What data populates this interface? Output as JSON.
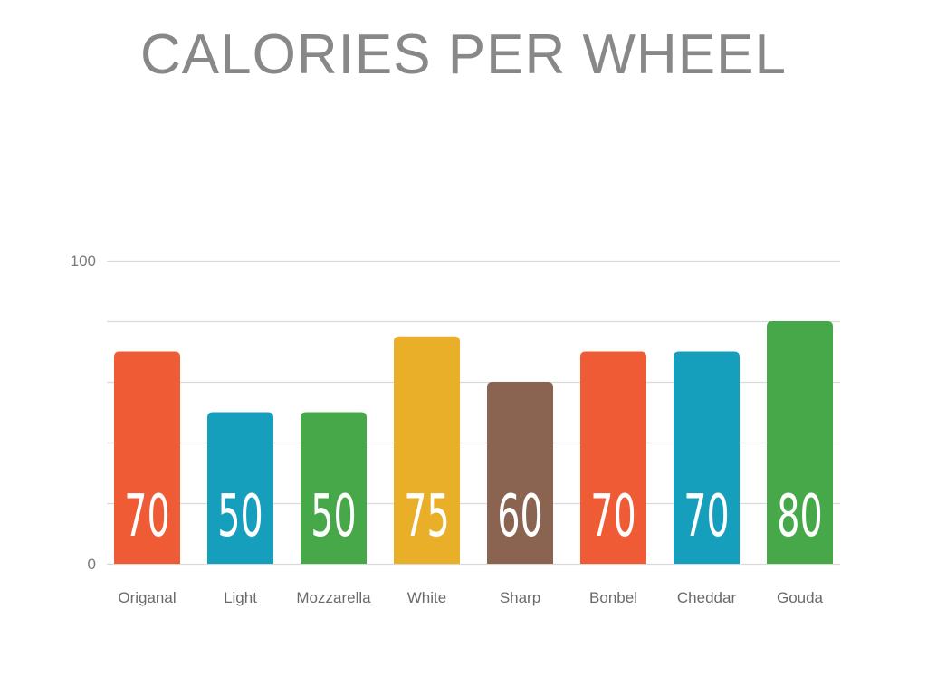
{
  "title": "CALORIES PER WHEEL",
  "chart_data": {
    "type": "bar",
    "title": "CALORIES PER WHEEL",
    "categories": [
      "Origanal",
      "Light",
      "Mozzarella",
      "White",
      "Sharp",
      "Bonbel",
      "Cheddar",
      "Gouda"
    ],
    "values": [
      70,
      50,
      50,
      75,
      60,
      70,
      70,
      80
    ],
    "colors": [
      "#ef5b34",
      "#169fbd",
      "#47a84a",
      "#e9af29",
      "#8a6451",
      "#ef5b34",
      "#169fbd",
      "#47a84a"
    ],
    "ylim": [
      0,
      100
    ],
    "y_tick_labels": [
      "0",
      "100"
    ],
    "gridlines": [
      0,
      20,
      40,
      60,
      80,
      100
    ],
    "grid": true,
    "legend": "none",
    "xlabel": "",
    "ylabel": ""
  }
}
